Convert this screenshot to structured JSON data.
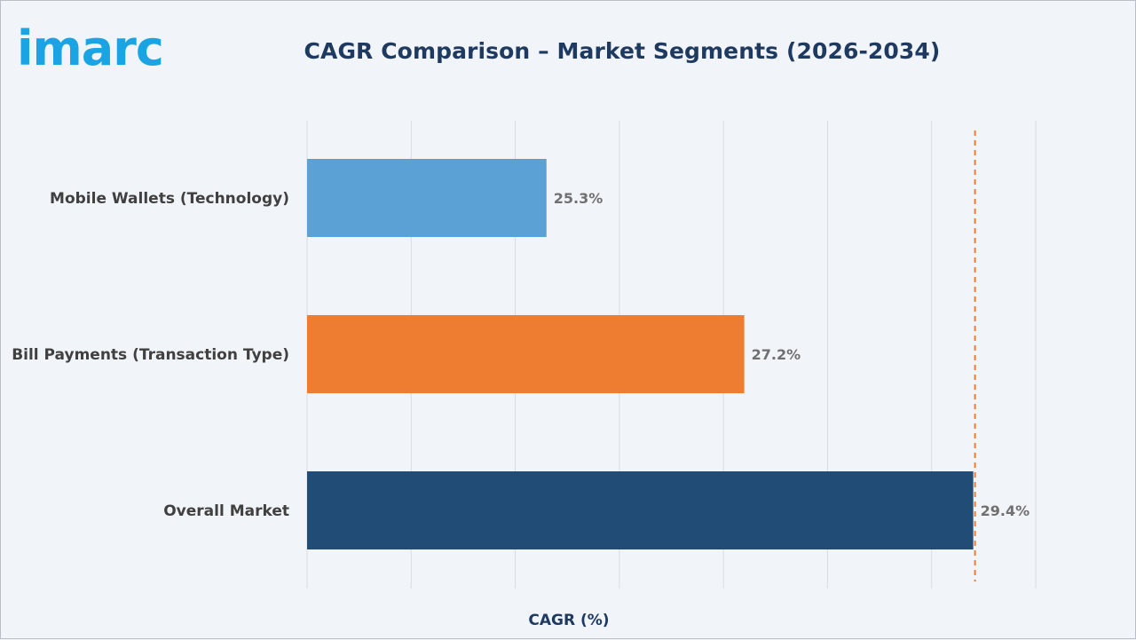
{
  "brand": {
    "logo_text": "imarc",
    "logo_color": "#1ba4e3"
  },
  "chart_data": {
    "type": "bar",
    "orientation": "horizontal",
    "title": "CAGR Comparison – Market Segments (2026-2034)",
    "xlabel": "CAGR (%)",
    "ylabel": "",
    "categories": [
      "Mobile Wallets (Technology)",
      "Bill Payments (Transaction Type)",
      "Overall Market"
    ],
    "values": [
      25.3,
      27.2,
      29.4
    ],
    "value_labels": [
      "25.3%",
      "27.2%",
      "29.4%"
    ],
    "colors": [
      "#5ca1d6",
      "#ee7d31",
      "#214c76"
    ],
    "reference_line": {
      "value": 29.4,
      "style": "dashed",
      "color": "#ee7d31"
    },
    "xlim": [
      23.0,
      30.0
    ],
    "grid": true
  }
}
